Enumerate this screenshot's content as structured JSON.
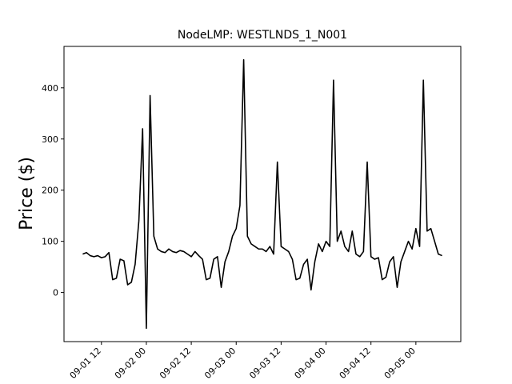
{
  "chart_data": {
    "type": "line",
    "title": "NodeLMP: WESTLNDS_1_N001",
    "y_label": "Price ($)",
    "x": [
      "09-01 07",
      "09-01 08",
      "09-01 09",
      "09-01 10",
      "09-01 11",
      "09-01 12",
      "09-01 13",
      "09-01 14",
      "09-01 15",
      "09-01 16",
      "09-01 17",
      "09-01 18",
      "09-01 19",
      "09-01 20",
      "09-01 21",
      "09-01 22",
      "09-01 23",
      "09-02 00",
      "09-02 01",
      "09-02 02",
      "09-02 03",
      "09-02 04",
      "09-02 05",
      "09-02 06",
      "09-02 07",
      "09-02 08",
      "09-02 09",
      "09-02 10",
      "09-02 11",
      "09-02 12",
      "09-02 13",
      "09-02 14",
      "09-02 15",
      "09-02 16",
      "09-02 17",
      "09-02 18",
      "09-02 19",
      "09-02 20",
      "09-02 21",
      "09-02 22",
      "09-02 23",
      "09-03 00",
      "09-03 01",
      "09-03 02",
      "09-03 03",
      "09-03 04",
      "09-03 05",
      "09-03 06",
      "09-03 07",
      "09-03 08",
      "09-03 09",
      "09-03 10",
      "09-03 11",
      "09-03 12",
      "09-03 13",
      "09-03 14",
      "09-03 15",
      "09-03 16",
      "09-03 17",
      "09-03 18",
      "09-03 19",
      "09-03 20",
      "09-03 21",
      "09-03 22",
      "09-03 23",
      "09-04 00",
      "09-04 01",
      "09-04 02",
      "09-04 03",
      "09-04 04",
      "09-04 05",
      "09-04 06",
      "09-04 07",
      "09-04 08",
      "09-04 09",
      "09-04 10",
      "09-04 11",
      "09-04 12",
      "09-04 13",
      "09-04 14",
      "09-04 15",
      "09-04 16",
      "09-04 17",
      "09-04 18",
      "09-04 19",
      "09-04 20",
      "09-04 21",
      "09-04 22",
      "09-04 23",
      "09-05 00",
      "09-05 01",
      "09-05 02",
      "09-05 03",
      "09-05 04",
      "09-05 05",
      "09-05 06",
      "09-05 07"
    ],
    "series": [
      {
        "color": "#000000",
        "values": [
          75,
          78,
          72,
          70,
          72,
          68,
          70,
          78,
          25,
          28,
          65,
          62,
          15,
          20,
          55,
          140,
          320,
          -70,
          385,
          110,
          85,
          80,
          78,
          85,
          80,
          78,
          82,
          80,
          75,
          70,
          80,
          72,
          65,
          25,
          28,
          65,
          70,
          10,
          60,
          80,
          110,
          125,
          170,
          455,
          110,
          95,
          90,
          85,
          85,
          80,
          90,
          75,
          255,
          90,
          85,
          80,
          65,
          25,
          28,
          55,
          65,
          5,
          60,
          95,
          80,
          100,
          90,
          415,
          100,
          120,
          90,
          80,
          120,
          75,
          70,
          80,
          255,
          70,
          65,
          68,
          25,
          30,
          60,
          70,
          10,
          60,
          80,
          100,
          85,
          125,
          90,
          415,
          120,
          125,
          100,
          75,
          72
        ]
      }
    ],
    "xlim": [
      "09-01 02",
      "09-05 12"
    ],
    "xticks": [
      "09-01 12",
      "09-02 00",
      "09-02 12",
      "09-03 00",
      "09-03 12",
      "09-04 00",
      "09-04 12",
      "09-05 00"
    ],
    "ylim": [
      -96,
      481
    ],
    "yticks": [
      0,
      100,
      200,
      300,
      400
    ]
  }
}
